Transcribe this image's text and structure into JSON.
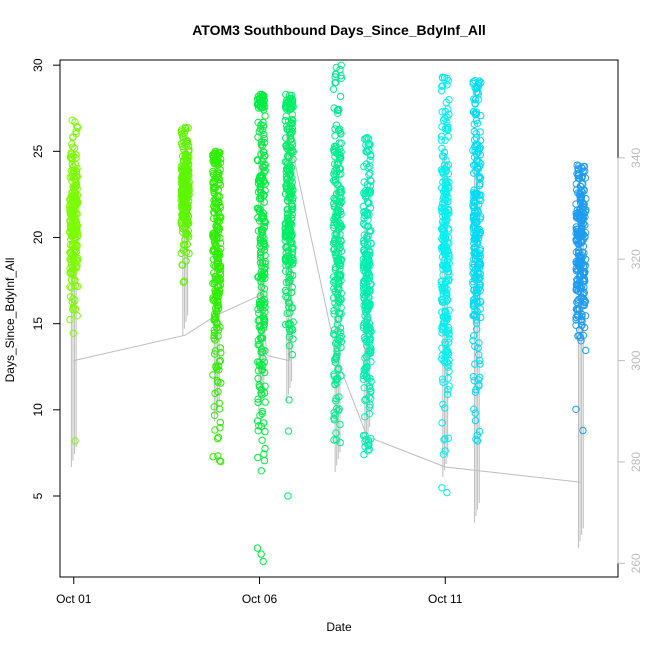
{
  "chart_data": {
    "type": "scatter",
    "title": "ATOM3 Southbound Days_Since_BdyInf_All",
    "xlabel": "Date",
    "ylabel": "Days_Since_BdyInf_All",
    "x_tick_labels": [
      "Oct 01",
      "Oct 06",
      "Oct 11"
    ],
    "x_tick_values": [
      0,
      5,
      10
    ],
    "x_domain": [
      -0.37,
      14.65
    ],
    "ylim": [
      0.3,
      30.3
    ],
    "y_ticks": [
      5,
      10,
      15,
      20,
      25,
      30
    ],
    "y2lim": [
      257.3,
      359.3
    ],
    "y2_ticks": [
      260,
      280,
      300,
      320,
      340
    ],
    "y2_color": "#bdbdbd",
    "grid": false,
    "legend": "none",
    "marker": "open-circle",
    "clusters": [
      {
        "x": 0.0,
        "y_min": 8.2,
        "y_max": 26.8,
        "center": 21.0,
        "spread": 2.5,
        "color": "#7cfc00"
      },
      {
        "x": 3.0,
        "y_min": 17.4,
        "y_max": 26.4,
        "center": 22.5,
        "spread": 1.6,
        "color": "#5ef500"
      },
      {
        "x": 3.85,
        "y_min": 7.0,
        "y_max": 25.0,
        "center": 19.0,
        "spread": 4.2,
        "color": "#2eef00"
      },
      {
        "x": 5.05,
        "y_min": 1.2,
        "y_max": 28.3,
        "center": 20.0,
        "spread": 6.5,
        "color": "#00ee40"
      },
      {
        "x": 5.8,
        "y_min": 5.0,
        "y_max": 28.3,
        "center": 21.5,
        "spread": 4.5,
        "color": "#00ee66"
      },
      {
        "x": 7.1,
        "y_min": 8.1,
        "y_max": 30.0,
        "center": 20.0,
        "spread": 5.0,
        "color": "#00ee90"
      },
      {
        "x": 7.9,
        "y_min": 7.4,
        "y_max": 25.8,
        "center": 17.5,
        "spread": 4.5,
        "color": "#00eeb0"
      },
      {
        "x": 10.0,
        "y_min": 5.2,
        "y_max": 29.3,
        "center": 19.0,
        "spread": 5.0,
        "color": "#00f0f0"
      },
      {
        "x": 10.85,
        "y_min": 8.2,
        "y_max": 29.1,
        "center": 20.0,
        "spread": 4.8,
        "color": "#00dcf5"
      },
      {
        "x": 13.65,
        "y_min": 8.8,
        "y_max": 24.2,
        "center": 19.5,
        "spread": 2.8,
        "color": "#1e9cf0"
      }
    ],
    "secondary_series": {
      "color": "#bdbdbd",
      "path": [
        [
          0.0,
          300
        ],
        [
          3.0,
          305
        ],
        [
          3.85,
          309
        ],
        [
          5.05,
          313
        ],
        [
          5.2,
          301
        ],
        [
          5.8,
          300
        ],
        [
          5.9,
          341
        ],
        [
          7.1,
          300
        ],
        [
          7.9,
          285
        ],
        [
          10.0,
          279
        ],
        [
          13.65,
          276
        ]
      ],
      "vertical_spans": [
        [
          0.0,
          279,
          322
        ],
        [
          3.0,
          305,
          345
        ],
        [
          3.85,
          288,
          330
        ],
        [
          5.05,
          290,
          347
        ],
        [
          5.8,
          292,
          347
        ],
        [
          7.1,
          278,
          336
        ],
        [
          7.9,
          283,
          326
        ],
        [
          10.0,
          277,
          342
        ],
        [
          10.85,
          268,
          341
        ],
        [
          13.65,
          263,
          328
        ]
      ]
    }
  }
}
